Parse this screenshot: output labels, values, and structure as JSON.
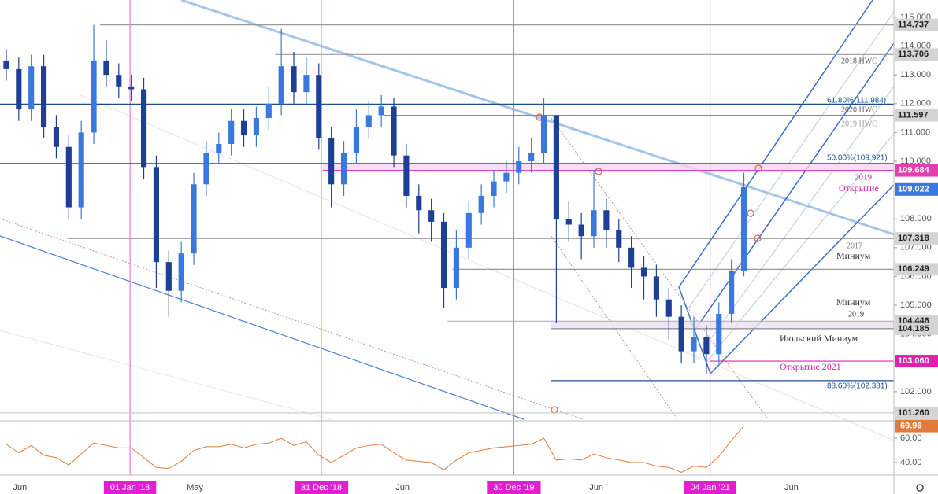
{
  "chart_data": [
    {
      "type": "candlestick",
      "open": [
        113.5,
        113.2,
        111.8,
        113.3,
        111.2,
        110.5,
        108.4,
        111.0,
        113.5,
        113.0,
        112.6,
        112.5,
        109.8,
        106.5,
        105.5,
        106.8,
        109.2,
        110.3,
        110.6,
        111.4,
        110.9,
        111.5,
        112.0,
        113.3,
        112.4,
        113.0,
        110.8,
        109.2,
        110.3,
        111.2,
        111.6,
        111.9,
        110.2,
        108.8,
        108.3,
        107.9,
        105.6,
        107.0,
        108.2,
        108.8,
        109.3,
        109.6,
        110.0,
        110.3,
        111.6,
        108.0,
        107.8,
        107.4,
        108.3,
        107.6,
        107.0,
        106.3,
        106.0,
        105.2,
        104.6,
        103.4,
        103.9,
        103.3,
        104.7,
        106.2
      ],
      "high": [
        113.9,
        113.6,
        113.7,
        113.7,
        111.6,
        110.9,
        111.4,
        114.74,
        114.2,
        113.4,
        113.0,
        112.9,
        110.2,
        106.9,
        107.2,
        109.6,
        110.7,
        111.0,
        111.8,
        111.8,
        111.9,
        112.6,
        114.6,
        113.8,
        113.6,
        113.4,
        111.2,
        110.7,
        111.8,
        112.1,
        112.3,
        112.2,
        110.6,
        109.2,
        108.7,
        108.2,
        107.6,
        108.6,
        109.2,
        109.7,
        110.0,
        110.5,
        110.8,
        112.2,
        111.6,
        108.6,
        108.2,
        109.7,
        108.7,
        108.0,
        107.4,
        106.7,
        106.4,
        105.6,
        105.0,
        104.6,
        104.3,
        105.1,
        106.6,
        109.6
      ],
      "low": [
        112.8,
        111.4,
        111.4,
        110.8,
        110.1,
        108.0,
        108.0,
        110.6,
        112.6,
        112.2,
        112.1,
        109.4,
        105.6,
        104.6,
        105.1,
        106.4,
        108.8,
        109.9,
        110.2,
        110.5,
        110.5,
        111.1,
        111.6,
        112.0,
        112.0,
        110.4,
        108.4,
        108.8,
        109.9,
        110.8,
        111.2,
        109.8,
        108.4,
        107.5,
        107.2,
        104.9,
        105.2,
        106.6,
        107.8,
        108.4,
        108.9,
        109.2,
        109.6,
        109.9,
        104.4,
        107.2,
        106.6,
        107.0,
        107.0,
        106.5,
        105.6,
        105.2,
        104.6,
        103.8,
        103.0,
        103.0,
        102.6,
        103.0,
        104.4,
        106.0
      ],
      "close": [
        113.2,
        111.8,
        113.3,
        111.2,
        110.5,
        108.4,
        111.0,
        113.5,
        113.0,
        112.6,
        112.5,
        109.8,
        106.5,
        105.5,
        106.8,
        109.2,
        110.3,
        110.6,
        111.4,
        110.9,
        111.5,
        112.0,
        113.3,
        112.4,
        113.0,
        110.8,
        109.2,
        110.3,
        111.2,
        111.6,
        111.9,
        110.2,
        108.8,
        108.3,
        107.9,
        105.6,
        107.0,
        108.2,
        108.8,
        109.3,
        109.6,
        110.0,
        110.3,
        111.6,
        108.0,
        107.8,
        107.4,
        108.3,
        107.6,
        107.0,
        106.3,
        106.0,
        105.2,
        104.6,
        103.4,
        103.9,
        103.3,
        104.7,
        106.2,
        109.1
      ],
      "up_color": "#3a78de",
      "down_color": "#1d3f94",
      "xlim": [
        0,
        71.5
      ],
      "xticks": [
        {
          "value": 1.6,
          "label": "Jun"
        },
        {
          "value": 10.4,
          "label": "01 Jan '18"
        },
        {
          "value": 15.6,
          "label": "May"
        },
        {
          "value": 25.7,
          "label": "31 Dec '18"
        },
        {
          "value": 32.2,
          "label": "Jun"
        },
        {
          "value": 41.1,
          "label": "30 Dec '19"
        },
        {
          "value": 47.7,
          "label": "Jun"
        },
        {
          "value": 56.8,
          "label": "04 Jan '21"
        },
        {
          "value": 63.3,
          "label": "Jun"
        }
      ],
      "year_ticks": [
        1,
        3,
        5,
        7
      ],
      "ylim": [
        101.04,
        115.6
      ],
      "yticks": [
        {
          "value": 102,
          "label": "102.000"
        },
        {
          "value": 103,
          "label": "103.000"
        },
        {
          "value": 104,
          "label": "104.000"
        },
        {
          "value": 105,
          "label": "105.000"
        },
        {
          "value": 106,
          "label": "106.000"
        },
        {
          "value": 107,
          "label": "107.000"
        },
        {
          "value": 108,
          "label": "108.000"
        },
        {
          "value": 109,
          "label": "109.000"
        },
        {
          "value": 110,
          "label": "110.000"
        },
        {
          "value": 111,
          "label": "111.000"
        },
        {
          "value": 112,
          "label": "112.000"
        },
        {
          "value": 113,
          "label": "113.000"
        },
        {
          "value": 114,
          "label": "114.000"
        },
        {
          "value": 115,
          "label": "115.000"
        }
      ],
      "levels": [
        {
          "value": 114.737,
          "label": "114.737",
          "from": 8,
          "color": "#9a9a9a",
          "tag": "#d4d4d4"
        },
        {
          "value": 113.706,
          "label": "113.706",
          "from": 22,
          "color": "#9a9a9a",
          "tag": "#d4d4d4"
        },
        {
          "value": 111.984,
          "from": 0,
          "color": "#1f4e8c"
        },
        {
          "value": 111.597,
          "label": "111.597",
          "from": 30.7,
          "color": "#8a8a8a",
          "tag": "#d4d4d4"
        },
        {
          "value": 109.921,
          "from": 0,
          "color": "#1f4e8c"
        },
        {
          "value": 109.684,
          "label": "109.684",
          "from": 25.8,
          "color": "#e040c8",
          "tag": "#e040b0"
        },
        {
          "value": 109.022,
          "label": "109.022",
          "from": 71.5,
          "color": "#3a78de",
          "tag": "#3a78de"
        },
        {
          "value": 107.318,
          "label": "107.318",
          "from": 5.4,
          "color": "#8a8a8a",
          "tag": "#d4d4d4"
        },
        {
          "value": 106.249,
          "label": "106.249",
          "from": 36.2,
          "color": "#8a8a8a",
          "tag": "#d4d4d4"
        },
        {
          "value": 104.446,
          "label": "104.446",
          "from": 35.8,
          "color": "#b0b0b0",
          "tag": "#d4d4d4"
        },
        {
          "value": 104.185,
          "label": "104.185",
          "from": 44.1,
          "color": "#8a8a8a",
          "tag": "#d4d4d4"
        },
        {
          "value": 103.06,
          "label": "103.060",
          "from": 56.8,
          "color": "#e020c0",
          "tag": "#e020b0"
        },
        {
          "value": 102.381,
          "from": 44.1,
          "color": "#1f4e8c"
        },
        {
          "value": 101.26,
          "label": "101.260",
          "from": 0,
          "color": "#c8c8c8",
          "tag": "#d4d4d4"
        }
      ],
      "annotations": [
        "2018 HWC",
        "61.80%(111.984)",
        "2020 HWC",
        "2019 HWC",
        "50.00%(109.921)",
        "2019",
        "Открытие",
        "2017",
        "Миниум",
        "Миниум",
        "2019",
        "Июльский Миниум",
        "Открытие 2021",
        "88.60%(102.381)"
      ]
    },
    {
      "type": "line",
      "values": [
        55,
        48,
        54,
        46,
        44,
        38,
        47,
        56,
        54,
        52,
        52,
        44,
        36,
        35,
        41,
        50,
        53,
        53,
        55,
        52,
        55,
        56,
        60,
        54,
        57,
        46,
        40,
        46,
        52,
        54,
        55,
        48,
        42,
        41,
        40,
        34,
        42,
        48,
        50,
        52,
        53,
        54,
        55,
        60,
        42,
        43,
        42,
        47,
        44,
        42,
        40,
        40,
        37,
        36,
        32,
        37,
        36,
        45,
        58,
        69.96
      ],
      "color": "#e07b39",
      "ylim": [
        29.7,
        72.9
      ],
      "yticks": [
        {
          "value": 40,
          "label": "40.00"
        },
        {
          "value": 60,
          "label": "60.00"
        }
      ]
    }
  ]
}
